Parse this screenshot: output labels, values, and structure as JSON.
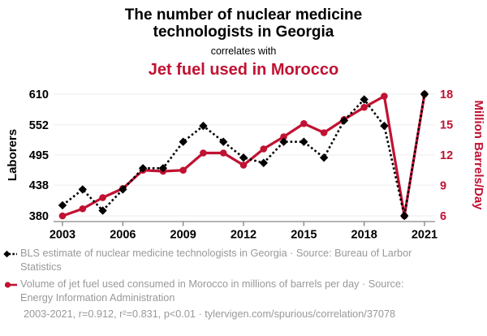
{
  "header": {
    "title": "The number of nuclear medicine technologists in Georgia",
    "connector": "correlates with",
    "subtitle": "Jet fuel used in Morocco"
  },
  "colors": {
    "accent_red": "#c01232",
    "series_black": "#000000",
    "grid": "#ececec",
    "axis_line": "#888888",
    "tick_text": "#000000",
    "muted_text": "#999999"
  },
  "chart_data": {
    "type": "line",
    "title": "The number of nuclear medicine technologists in Georgia correlates with Jet fuel used in Morocco",
    "x": [
      2003,
      2004,
      2005,
      2006,
      2007,
      2008,
      2009,
      2010,
      2011,
      2012,
      2013,
      2014,
      2015,
      2016,
      2017,
      2018,
      2019,
      2020,
      2021
    ],
    "x_tick_labels": [
      2003,
      2006,
      2009,
      2012,
      2015,
      2018,
      2021
    ],
    "series": [
      {
        "name": "BLS estimate of nuclear medicine technologists in Georgia",
        "axis": "left",
        "line_style": "dotted",
        "marker": "diamond",
        "color": "#000000",
        "values": [
          400,
          430,
          390,
          430,
          470,
          470,
          520,
          550,
          520,
          490,
          480,
          520,
          520,
          490,
          560,
          600,
          550,
          380,
          610
        ]
      },
      {
        "name": "Volume of jet fuel used consumed in Morocco",
        "axis": "right",
        "line_style": "solid",
        "marker": "circle",
        "color": "#c01232",
        "values": [
          6.0,
          6.7,
          7.8,
          8.7,
          10.5,
          10.4,
          10.5,
          12.2,
          12.2,
          11.0,
          12.6,
          13.8,
          15.1,
          14.2,
          15.5,
          16.7,
          17.8,
          6.0,
          18.0
        ]
      }
    ],
    "left_axis": {
      "label": "Laborers",
      "ticks": [
        380,
        438,
        495,
        552,
        610
      ],
      "min": 380,
      "max": 610,
      "color": "#000000"
    },
    "right_axis": {
      "label": "Million Barrels/Day",
      "ticks": [
        6,
        9,
        12,
        15,
        18
      ],
      "min": 6,
      "max": 18,
      "color": "#c01232"
    },
    "grid": "horizontal-only",
    "legend_position": "below"
  },
  "legend": {
    "series1_label": "BLS estimate of nuclear medicine technologists in Georgia · Source: Bureau of Larbor Statistics",
    "series2_label": "Volume of jet fuel used consumed in Morocco in millions of barrels per day · Source: Energy Information Administration"
  },
  "footer": {
    "stats": "2003-2021, r=0.912, r²=0.831, p<0.01 · tylervigen.com/spurious/correlation/37078"
  }
}
